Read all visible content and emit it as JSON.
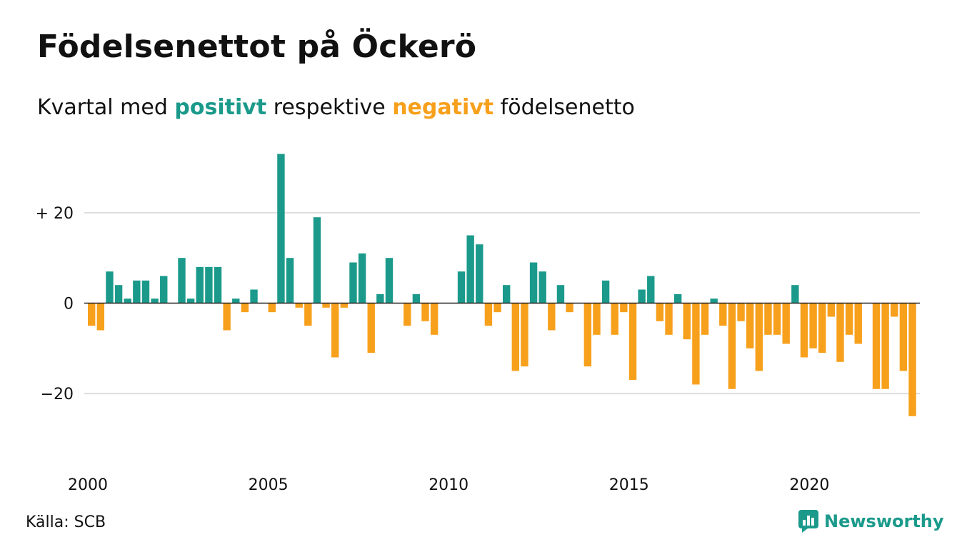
{
  "header": {
    "title": "Födelsenettot på Öckerö",
    "subtitle_prefix": "Kvartal med ",
    "subtitle_positive": "positivt",
    "subtitle_middle": " respektive ",
    "subtitle_negative": "negativt",
    "subtitle_suffix": " födelsenetto"
  },
  "colors": {
    "positive": "#1b9a8b",
    "negative": "#f7a01c",
    "grid": "#dddddd",
    "axis": "#222222"
  },
  "chart_data": {
    "type": "bar",
    "x_label_years": [
      "2000",
      "2005",
      "2010",
      "2015",
      "2020"
    ],
    "y_ticks": [
      {
        "value": 20,
        "label": "+ 20"
      },
      {
        "value": 0,
        "label": "0"
      },
      {
        "value": -20,
        "label": "−20"
      }
    ],
    "ylim": [
      -26,
      34
    ],
    "start_year": 2000,
    "values": [
      -5,
      -6,
      7,
      4,
      1,
      5,
      5,
      1,
      6,
      0,
      10,
      1,
      8,
      8,
      8,
      -6,
      1,
      -2,
      3,
      0,
      -2,
      33,
      10,
      -1,
      -5,
      19,
      -1,
      -12,
      -1,
      9,
      11,
      -11,
      2,
      10,
      0,
      -5,
      2,
      -4,
      -7,
      0,
      0,
      7,
      15,
      13,
      -5,
      -2,
      4,
      -15,
      -14,
      9,
      7,
      -6,
      4,
      -2,
      0,
      -14,
      -7,
      5,
      -7,
      -2,
      -17,
      3,
      6,
      -4,
      -7,
      2,
      -8,
      -18,
      -7,
      1,
      -5,
      -19,
      -4,
      -10,
      -15,
      -7,
      -7,
      -9,
      4,
      -12,
      -10,
      -11,
      -3,
      -13,
      -7,
      -9,
      0,
      -19,
      -19,
      -3,
      -15,
      -25
    ],
    "grid": true,
    "legend": "none"
  },
  "footer": {
    "source": "Källa: SCB",
    "brand": "Newsworthy",
    "brand_icon": "newsworthy-chart-logo-icon"
  }
}
